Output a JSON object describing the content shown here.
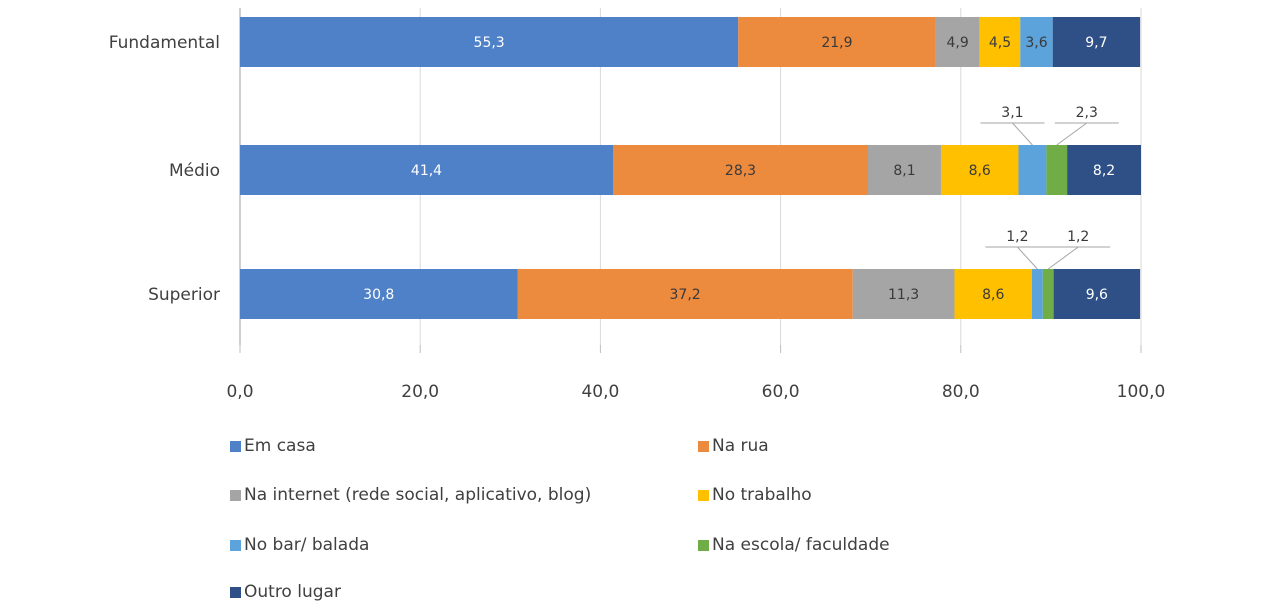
{
  "chart_data": {
    "type": "bar",
    "orientation": "horizontal",
    "stacked": true,
    "categories": [
      "Fundamental",
      "Médio",
      "Superior"
    ],
    "series": [
      {
        "name": "Em casa",
        "values": [
          55.3,
          41.4,
          30.8
        ],
        "color": "#4F81C9",
        "label_color": "#ffffff"
      },
      {
        "name": "Na rua",
        "values": [
          21.9,
          28.3,
          37.2
        ],
        "color": "#EC8A3E",
        "label_color": "#3a3a3a"
      },
      {
        "name": "Na internet (rede social, aplicativo, blog)",
        "values": [
          4.9,
          8.1,
          11.3
        ],
        "color": "#A5A5A5",
        "label_color": "#3a3a3a"
      },
      {
        "name": "No trabalho",
        "values": [
          4.5,
          8.6,
          8.6
        ],
        "color": "#FFC000",
        "label_color": "#3a3a3a"
      },
      {
        "name": "No bar/ balada",
        "values": [
          3.6,
          3.1,
          1.2
        ],
        "color": "#5BA3DA",
        "label_color": "#3a3a3a"
      },
      {
        "name": "Na escola/ faculdade",
        "values": [
          0.0,
          2.3,
          1.2
        ],
        "color": "#70AD47",
        "label_color": "#3a3a3a"
      },
      {
        "name": "Outro lugar",
        "values": [
          9.7,
          8.2,
          9.6
        ],
        "color": "#2E5087",
        "label_color": "#ffffff"
      }
    ],
    "data_labels": [
      [
        "55,3",
        "21,9",
        "4,9",
        "4,5",
        "3,6",
        "",
        "9,7"
      ],
      [
        "41,4",
        "28,3",
        "8,1",
        "8,6",
        "3,1",
        "2,3",
        "8,2"
      ],
      [
        "30,8",
        "37,2",
        "11,3",
        "8,6",
        "1,2",
        "1,2",
        "9,6"
      ]
    ],
    "callout_labels": [
      [],
      [
        4,
        5
      ],
      [
        4,
        5
      ]
    ],
    "xlim": [
      0,
      100
    ],
    "xticks": [
      0,
      20,
      40,
      60,
      80,
      100
    ],
    "xtick_labels": [
      "0,0",
      "20,0",
      "40,0",
      "60,0",
      "80,0",
      "100,0"
    ],
    "grid": "vertical",
    "legend_position": "bottom",
    "title": "",
    "xlabel": "",
    "ylabel": ""
  }
}
